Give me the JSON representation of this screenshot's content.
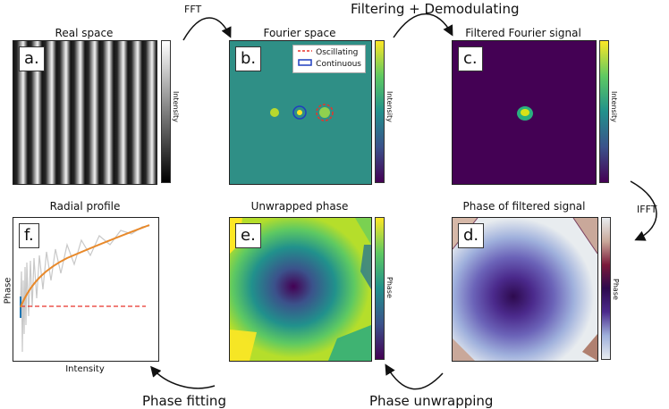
{
  "panels": {
    "a": {
      "tag": "a.",
      "title": "Real space",
      "cbar": "Intensity"
    },
    "b": {
      "tag": "b.",
      "title": "Fourier space",
      "cbar": "Intensity",
      "legend": [
        "Oscillating",
        "Continuous"
      ]
    },
    "c": {
      "tag": "c.",
      "title": "Filtered Fourier signal",
      "cbar": "Intensity"
    },
    "d": {
      "tag": "d.",
      "title": "Phase of filtered signal",
      "cbar": "Phase"
    },
    "e": {
      "tag": "e.",
      "title": "Unwrapped phase",
      "cbar": "Phase"
    },
    "f": {
      "tag": "f.",
      "title": "Radial profile",
      "xlabel": "Intensity",
      "ylabel": "Phase"
    }
  },
  "arrows": {
    "fft": "FFT",
    "filter": "Filtering + Demodulating",
    "ifft": "IFFT",
    "unwrap": "Phase unwrapping",
    "fitting": "Phase fitting"
  },
  "colors": {
    "viridis_dark": "#440154",
    "viridis_teal": "#21918c",
    "viridis_yellow": "#fde725",
    "oscillating": "#e8332a",
    "continuous": "#1f3fbf",
    "fit": "#e8892a",
    "raw": "#c8c8c8"
  }
}
